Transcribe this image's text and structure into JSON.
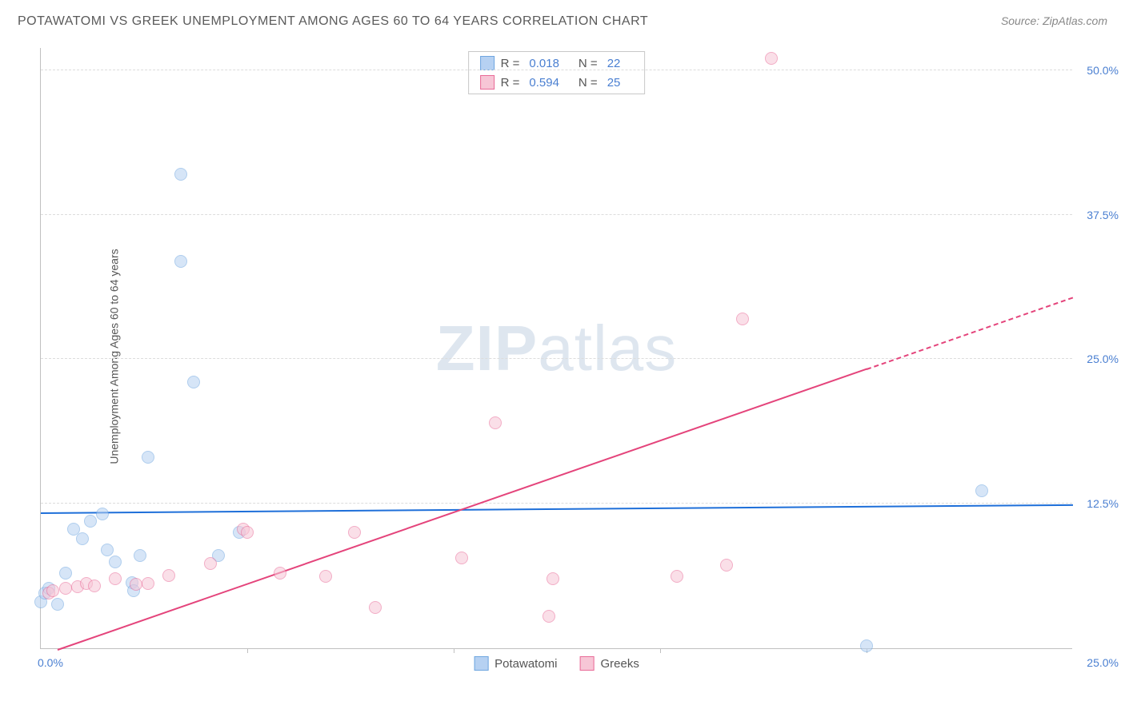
{
  "title": "POTAWATOMI VS GREEK UNEMPLOYMENT AMONG AGES 60 TO 64 YEARS CORRELATION CHART",
  "source": "Source: ZipAtlas.com",
  "ylabel": "Unemployment Among Ages 60 to 64 years",
  "watermark_a": "ZIP",
  "watermark_b": "atlas",
  "chart": {
    "type": "scatter",
    "xlim": [
      0,
      25
    ],
    "ylim": [
      0,
      52
    ],
    "xtick_step": 5,
    "x_origin_label": "0.0%",
    "x_max_label": "25.0%",
    "y_ticks": [
      {
        "v": 12.5,
        "label": "12.5%"
      },
      {
        "v": 25.0,
        "label": "25.0%"
      },
      {
        "v": 37.5,
        "label": "37.5%"
      },
      {
        "v": 50.0,
        "label": "50.0%"
      }
    ],
    "background_color": "#ffffff",
    "grid_color": "#dcdcdc",
    "axis_color": "#c0c0c0",
    "tick_label_color": "#4a7fd1",
    "marker_radius": 8,
    "marker_opacity": 0.55,
    "series": [
      {
        "name": "Potawatomi",
        "color_fill": "#b6d1f2",
        "color_stroke": "#6fa6e0",
        "R": "0.018",
        "N": "22",
        "trend": {
          "y_at_x0": 11.8,
          "y_at_x25": 12.5,
          "color": "#1e6fd9",
          "dash_from_x": 25
        },
        "points": [
          {
            "x": 0.0,
            "y": 4.0
          },
          {
            "x": 0.1,
            "y": 4.8
          },
          {
            "x": 0.2,
            "y": 5.2
          },
          {
            "x": 0.4,
            "y": 3.8
          },
          {
            "x": 0.6,
            "y": 6.5
          },
          {
            "x": 0.8,
            "y": 10.3
          },
          {
            "x": 1.0,
            "y": 9.5
          },
          {
            "x": 1.2,
            "y": 11.0
          },
          {
            "x": 1.5,
            "y": 11.6
          },
          {
            "x": 1.6,
            "y": 8.5
          },
          {
            "x": 1.8,
            "y": 7.5
          },
          {
            "x": 2.2,
            "y": 5.7
          },
          {
            "x": 2.25,
            "y": 5.0
          },
          {
            "x": 2.4,
            "y": 8.0
          },
          {
            "x": 2.6,
            "y": 16.5
          },
          {
            "x": 3.4,
            "y": 33.5
          },
          {
            "x": 3.4,
            "y": 41.0
          },
          {
            "x": 3.7,
            "y": 23.0
          },
          {
            "x": 4.3,
            "y": 8.0
          },
          {
            "x": 4.8,
            "y": 10.0
          },
          {
            "x": 20.0,
            "y": 0.2
          },
          {
            "x": 22.8,
            "y": 13.6
          }
        ]
      },
      {
        "name": "Greeks",
        "color_fill": "#f7c6d6",
        "color_stroke": "#e96b98",
        "R": "0.594",
        "N": "25",
        "trend": {
          "y_at_x0": -0.5,
          "y_at_x25": 30.5,
          "color": "#e4447b",
          "dash_from_x": 20
        },
        "points": [
          {
            "x": 0.2,
            "y": 4.8
          },
          {
            "x": 0.3,
            "y": 5.0
          },
          {
            "x": 0.6,
            "y": 5.2
          },
          {
            "x": 0.9,
            "y": 5.3
          },
          {
            "x": 1.1,
            "y": 5.6
          },
          {
            "x": 1.3,
            "y": 5.4
          },
          {
            "x": 1.8,
            "y": 6.0
          },
          {
            "x": 2.3,
            "y": 5.5
          },
          {
            "x": 2.6,
            "y": 5.6
          },
          {
            "x": 3.1,
            "y": 6.3
          },
          {
            "x": 4.1,
            "y": 7.3
          },
          {
            "x": 4.9,
            "y": 10.3
          },
          {
            "x": 5.0,
            "y": 10.0
          },
          {
            "x": 5.8,
            "y": 6.5
          },
          {
            "x": 6.9,
            "y": 6.2
          },
          {
            "x": 7.6,
            "y": 10.0
          },
          {
            "x": 8.1,
            "y": 3.5
          },
          {
            "x": 10.2,
            "y": 7.8
          },
          {
            "x": 11.0,
            "y": 19.5
          },
          {
            "x": 12.3,
            "y": 2.8
          },
          {
            "x": 12.4,
            "y": 6.0
          },
          {
            "x": 15.4,
            "y": 6.2
          },
          {
            "x": 16.6,
            "y": 7.2
          },
          {
            "x": 17.0,
            "y": 28.5
          },
          {
            "x": 17.7,
            "y": 51.0
          }
        ]
      }
    ]
  },
  "legend_bottom": [
    {
      "label": "Potawatomi",
      "fill": "#b6d1f2",
      "stroke": "#6fa6e0"
    },
    {
      "label": "Greeks",
      "fill": "#f7c6d6",
      "stroke": "#e96b98"
    }
  ]
}
